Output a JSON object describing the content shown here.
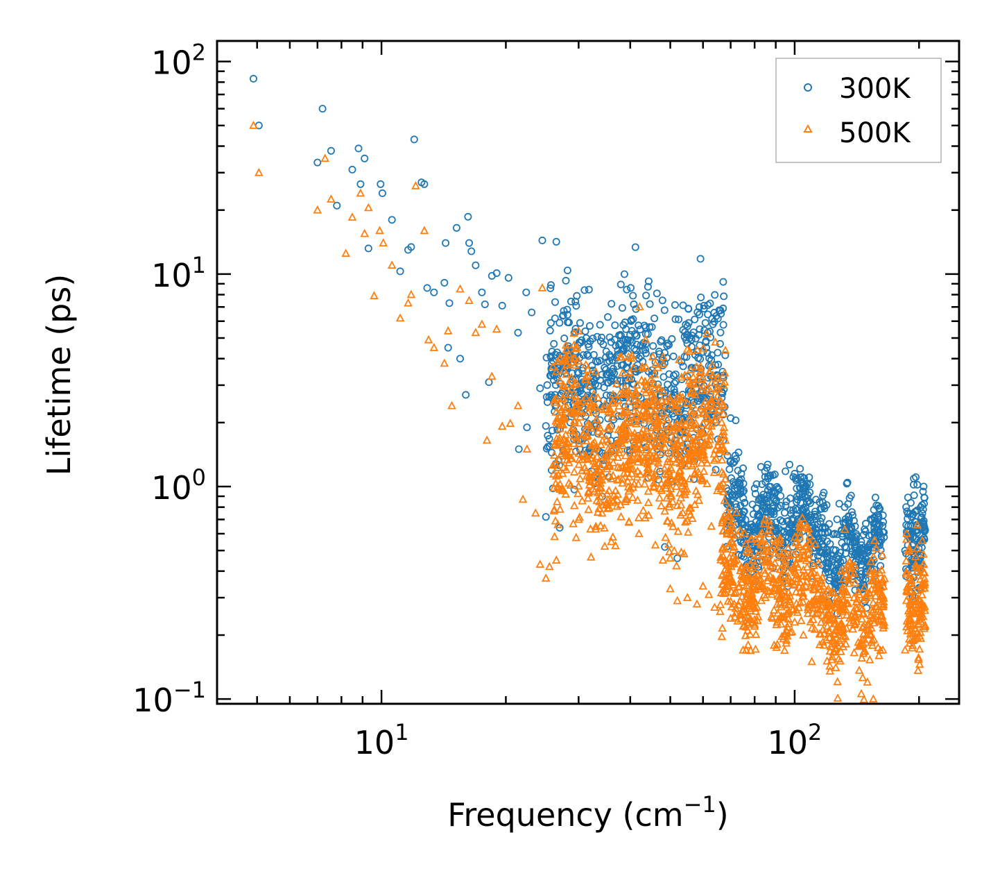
{
  "chart_data": {
    "type": "scatter",
    "x_scale": "log",
    "y_scale": "log",
    "xlabel": "Frequency (cm",
    "xlabel_sup": "−1",
    "xlabel_end": ")",
    "ylabel": "Lifetime (ps)",
    "xlim": [
      4.0,
      250.0
    ],
    "ylim": [
      0.095,
      125.0
    ],
    "x_ticks": [
      {
        "value": 10,
        "base": "10",
        "exp": "1"
      },
      {
        "value": 100,
        "base": "10",
        "exp": "2"
      }
    ],
    "y_ticks": [
      {
        "value": 0.1,
        "base": "10",
        "exp": "−1"
      },
      {
        "value": 1,
        "base": "10",
        "exp": "0"
      },
      {
        "value": 10,
        "base": "10",
        "exp": "1"
      },
      {
        "value": 100,
        "base": "10",
        "exp": "2"
      }
    ],
    "legend": {
      "position": "top-right"
    },
    "series": [
      {
        "name": "300K",
        "marker": "circle",
        "color": "#1f77b4",
        "points": [
          [
            4.9,
            83
          ],
          [
            5.05,
            50
          ],
          [
            7.2,
            60
          ],
          [
            7.55,
            38
          ],
          [
            7.0,
            33.5
          ],
          [
            7.8,
            21
          ],
          [
            8.5,
            31
          ],
          [
            8.8,
            39
          ],
          [
            9.1,
            35
          ],
          [
            8.9,
            26.5
          ],
          [
            9.95,
            26.5
          ],
          [
            10.05,
            24
          ],
          [
            10.6,
            18
          ],
          [
            9.3,
            13.2
          ],
          [
            11.1,
            10.3
          ],
          [
            11.6,
            13
          ],
          [
            11.8,
            13.4
          ],
          [
            12.0,
            43
          ],
          [
            12.5,
            27
          ],
          [
            12.7,
            26.5
          ],
          [
            12.9,
            8.6
          ],
          [
            13.4,
            8.2
          ],
          [
            14.2,
            9.1
          ],
          [
            14.6,
            7.3
          ],
          [
            14.3,
            14
          ],
          [
            15.2,
            16.5
          ],
          [
            16.2,
            18.6
          ],
          [
            16.3,
            14
          ],
          [
            16.5,
            12.8
          ],
          [
            16.9,
            11
          ],
          [
            17.5,
            8.2
          ],
          [
            17.8,
            7.2
          ],
          [
            18.5,
            9.8
          ],
          [
            19.0,
            10.1
          ],
          [
            19.6,
            7.1
          ],
          [
            20.3,
            9.6
          ],
          [
            21.4,
            5.3
          ],
          [
            22.4,
            8.2
          ],
          [
            23.1,
            6.6
          ],
          [
            24.5,
            14.4
          ],
          [
            28.2,
            10.4
          ],
          [
            31.0,
            8.4
          ],
          [
            26.0,
            0.98
          ],
          [
            25.0,
            0.72
          ],
          [
            27.0,
            0.64
          ],
          [
            48.5,
            0.52
          ],
          [
            52.0,
            0.46
          ],
          [
            21.5,
            1.5
          ],
          [
            22.5,
            1.9
          ],
          [
            16.0,
            2.7
          ],
          [
            14.5,
            4.5
          ],
          [
            15.5,
            4.0
          ],
          [
            18.2,
            3.1
          ],
          [
            24.2,
            2.9
          ],
          [
            29.0,
            2.2
          ],
          [
            60.0,
            4.3
          ],
          [
            62.0,
            3.7
          ],
          [
            63.0,
            2.9
          ],
          [
            65.0,
            2.5
          ],
          [
            70.0,
            2.1
          ],
          [
            72.0,
            2.05
          ],
          [
            75.0,
            1.22
          ],
          [
            80.0,
            0.98
          ],
          [
            85.0,
            1.05
          ],
          [
            90.0,
            0.85
          ],
          [
            95.0,
            1.18
          ],
          [
            100.0,
            1.15
          ],
          [
            105.0,
            0.72
          ],
          [
            115.0,
            0.55
          ],
          [
            125.0,
            0.6
          ],
          [
            135.0,
            0.72
          ],
          [
            140.0,
            0.65
          ],
          [
            145.0,
            0.55
          ],
          [
            155.0,
            0.5
          ],
          [
            160.0,
            0.33
          ],
          [
            185.0,
            0.5
          ],
          [
            192.0,
            0.72
          ],
          [
            198.0,
            1.02
          ],
          [
            202.0,
            0.8
          ],
          [
            205.0,
            0.65
          ]
        ]
      },
      {
        "name": "500K",
        "marker": "triangle",
        "color": "#ff7f0e",
        "points": [
          [
            4.9,
            50
          ],
          [
            5.05,
            30
          ],
          [
            7.0,
            20
          ],
          [
            7.3,
            35
          ],
          [
            7.55,
            22.5
          ],
          [
            8.2,
            12.5
          ],
          [
            8.5,
            18.5
          ],
          [
            8.9,
            24
          ],
          [
            9.1,
            15.5
          ],
          [
            9.3,
            20.5
          ],
          [
            9.6,
            7.9
          ],
          [
            9.9,
            16
          ],
          [
            10.1,
            14
          ],
          [
            10.6,
            11
          ],
          [
            11.1,
            6.2
          ],
          [
            11.6,
            7.3
          ],
          [
            11.8,
            8.0
          ],
          [
            12.1,
            26
          ],
          [
            12.7,
            16
          ],
          [
            13.0,
            4.9
          ],
          [
            13.4,
            4.5
          ],
          [
            14.2,
            3.8
          ],
          [
            14.5,
            5.4
          ],
          [
            14.8,
            2.4
          ],
          [
            15.5,
            8.5
          ],
          [
            16.3,
            7.5
          ],
          [
            16.9,
            5.3
          ],
          [
            17.5,
            5.8
          ],
          [
            18.5,
            3.3
          ],
          [
            19.0,
            5.5
          ],
          [
            21.4,
            2.4
          ],
          [
            22.0,
            0.87
          ],
          [
            23.6,
            0.75
          ],
          [
            24.5,
            8.6
          ],
          [
            25.0,
            0.37
          ],
          [
            25.5,
            0.42
          ],
          [
            26.5,
            0.45
          ],
          [
            24.2,
            0.43
          ],
          [
            19.6,
            1.92
          ],
          [
            18.0,
            1.65
          ],
          [
            20.5,
            1.98
          ],
          [
            22.5,
            1.5
          ],
          [
            27.0,
            1.7
          ],
          [
            28.0,
            1.2
          ],
          [
            30.0,
            0.7
          ],
          [
            33.0,
            0.63
          ],
          [
            36.0,
            0.55
          ],
          [
            38.0,
            0.72
          ],
          [
            42.0,
            0.6
          ],
          [
            46.0,
            0.53
          ],
          [
            48.0,
            0.45
          ],
          [
            50.0,
            0.33
          ],
          [
            52.0,
            0.29
          ],
          [
            55.0,
            0.3
          ],
          [
            58.0,
            0.28
          ],
          [
            60.0,
            0.34
          ],
          [
            62.0,
            0.31
          ],
          [
            64.0,
            0.27
          ],
          [
            70.0,
            0.24
          ],
          [
            75.0,
            0.17
          ],
          [
            80.0,
            0.22
          ],
          [
            85.0,
            0.3
          ],
          [
            90.0,
            0.55
          ],
          [
            95.0,
            0.45
          ],
          [
            100.0,
            0.23
          ],
          [
            105.0,
            0.2
          ],
          [
            110.0,
            0.15
          ],
          [
            115.0,
            0.18
          ],
          [
            120.0,
            0.22
          ],
          [
            125.0,
            0.28
          ],
          [
            135.0,
            0.35
          ],
          [
            140.0,
            0.25
          ],
          [
            145.0,
            0.18
          ],
          [
            150.0,
            0.12
          ],
          [
            155.0,
            0.1
          ],
          [
            160.0,
            0.16
          ],
          [
            185.0,
            0.17
          ],
          [
            190.0,
            0.28
          ],
          [
            198.0,
            0.66
          ],
          [
            205.0,
            0.48
          ]
        ]
      }
    ],
    "bands": [
      {
        "series": "300K",
        "x_range": [
          25,
          68
        ],
        "y_center": [
          2.5,
          3.8
        ],
        "spread": 0.45,
        "n": 700
      },
      {
        "series": "300K",
        "x_range": [
          68,
          110
        ],
        "y_center": [
          0.55,
          0.85
        ],
        "spread": 0.25,
        "n": 380
      },
      {
        "series": "300K",
        "x_range": [
          110,
          165
        ],
        "y_center": [
          0.42,
          0.62
        ],
        "spread": 0.22,
        "n": 300
      },
      {
        "series": "300K",
        "x_range": [
          186,
          207
        ],
        "y_center": [
          0.45,
          0.7
        ],
        "spread": 0.22,
        "n": 110
      },
      {
        "series": "500K",
        "x_range": [
          26,
          68
        ],
        "y_center": [
          1.3,
          2.0
        ],
        "spread": 0.45,
        "n": 900
      },
      {
        "series": "500K",
        "x_range": [
          66,
          110
        ],
        "y_center": [
          0.3,
          0.45
        ],
        "spread": 0.28,
        "n": 420
      },
      {
        "series": "500K",
        "x_range": [
          110,
          165
        ],
        "y_center": [
          0.2,
          0.32
        ],
        "spread": 0.26,
        "n": 320
      },
      {
        "series": "500K",
        "x_range": [
          186,
          207
        ],
        "y_center": [
          0.22,
          0.35
        ],
        "spread": 0.3,
        "n": 120
      }
    ]
  }
}
